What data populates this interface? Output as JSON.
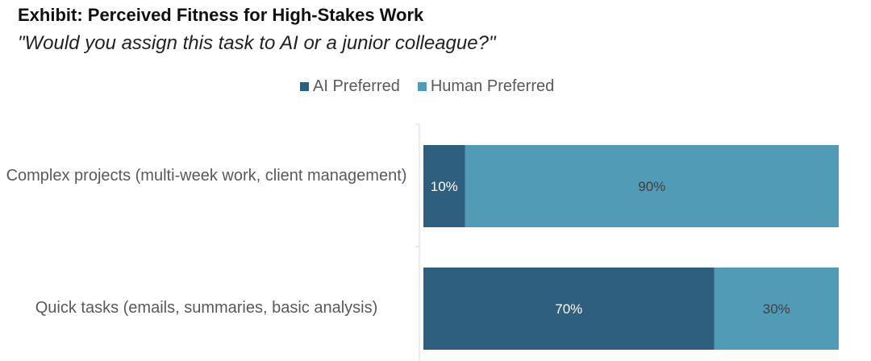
{
  "title": "Exhibit: Perceived Fitness for High-Stakes Work",
  "subtitle": "\"Would you assign this task to AI or a junior colleague?\"",
  "colors": {
    "ai": "#2e5f7f",
    "human": "#519bb6",
    "axis": "#d9d9d9",
    "label_dark_bar": "#ffffff",
    "label_light_bar": "#404040"
  },
  "chart_data": {
    "type": "bar",
    "orientation": "horizontal",
    "stacked": true,
    "categories": [
      "Complex projects (multi-week work, client management)",
      "Quick tasks (emails, summaries, basic analysis)"
    ],
    "series": [
      {
        "name": "AI Preferred",
        "values": [
          10,
          70
        ]
      },
      {
        "name": "Human Preferred",
        "values": [
          90,
          30
        ]
      }
    ],
    "data_labels": [
      [
        "10%",
        "70%"
      ],
      [
        "90%",
        "30%"
      ]
    ],
    "xlim": [
      0,
      100
    ],
    "legend_position": "top",
    "grid": false
  }
}
